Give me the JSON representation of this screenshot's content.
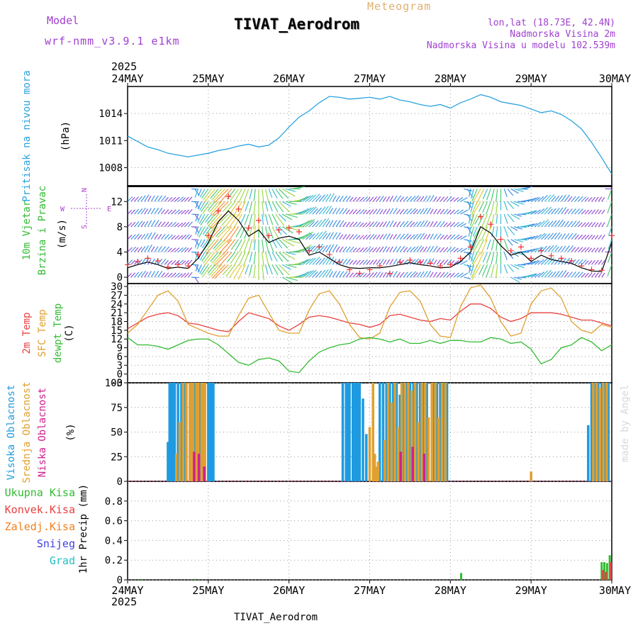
{
  "header": {
    "title": "TIVAT_Aerodrom",
    "subtitle": "Meteogram",
    "model_label": "Model",
    "model_name": "wrf-nmm_v3.9.1 e1km",
    "location": "lon,lat (18.73E, 42.4N)",
    "elevation": "Nadmorska Visina 2m",
    "model_elevation": "Nadmorska Visina u modelu 102.539m",
    "footer_title": "TIVAT_Aerodrom",
    "credit": "made by Angel"
  },
  "time_axis": {
    "top_year": "2025",
    "bottom_year": "2025",
    "days": [
      "24MAY",
      "25MAY",
      "26MAY",
      "27MAY",
      "28MAY",
      "29MAY",
      "30MAY"
    ]
  },
  "panel_labels": {
    "pressure": [
      "Pritisak na nivou mora",
      "(hPa)"
    ],
    "wind": [
      "10m Vjetar",
      "Brzina i Pravac",
      "(m/s)"
    ],
    "compass": {
      "n": "N",
      "s": "S",
      "w": "W",
      "e": "E"
    },
    "temp": [
      "2m Temp",
      "SFC Temp",
      "dewpt Temp",
      "(C)"
    ],
    "cloud": [
      "Visoka Oblacnost",
      "Srednja Oblacnost",
      "Niska Oblacnost",
      "(%)"
    ],
    "precip_legend": [
      "Ukupna Kisa",
      "Konvek.Kisa",
      "Zaledj.Kisa",
      "Snijeg",
      "Grad"
    ],
    "precip_unit": "1hr Precip (mm)"
  },
  "colors": {
    "pressure": "#2aa3e0",
    "wind_speed": "#000000",
    "wind_gust": "#f03030",
    "t2m": "#e84040",
    "sfc": "#e0a030",
    "dewpt": "#33bb33",
    "cloud_high": "#1e9be0",
    "cloud_mid": "#e0a030",
    "cloud_low": "#d02090",
    "precip_total": "#33bb33",
    "precip_conv": "#e84040",
    "precip_frz": "#f08020",
    "precip_snow": "#4040e0",
    "precip_hail": "#20c0c0",
    "title": "#000000",
    "meta_text": "#a040d0"
  },
  "chart_data": [
    {
      "type": "line",
      "name": "pressure",
      "x_unit": "hours from 24MAY 00",
      "ylim": [
        1006,
        1017
      ],
      "yticks": [
        1008,
        1011,
        1014
      ],
      "x": [
        0,
        3,
        6,
        9,
        12,
        15,
        18,
        21,
        24,
        27,
        30,
        33,
        36,
        39,
        42,
        45,
        48,
        51,
        54,
        57,
        60,
        63,
        66,
        69,
        72,
        75,
        78,
        81,
        84,
        87,
        90,
        93,
        96,
        99,
        102,
        105,
        108,
        111,
        114,
        117,
        120,
        123,
        126,
        129,
        132,
        135,
        138,
        141,
        144
      ],
      "y": [
        1011.5,
        1010.9,
        1010.3,
        1010.0,
        1009.6,
        1009.4,
        1009.2,
        1009.4,
        1009.6,
        1009.9,
        1010.1,
        1010.4,
        1010.6,
        1010.3,
        1010.5,
        1011.3,
        1012.5,
        1013.6,
        1014.3,
        1015.2,
        1015.9,
        1015.8,
        1015.6,
        1015.7,
        1015.8,
        1015.6,
        1015.9,
        1015.5,
        1015.3,
        1015.0,
        1014.8,
        1015.0,
        1014.6,
        1015.2,
        1015.6,
        1016.1,
        1015.8,
        1015.3,
        1015.1,
        1014.9,
        1014.5,
        1014.1,
        1014.3,
        1013.9,
        1013.2,
        1012.3,
        1010.8,
        1009.1,
        1007.3
      ]
    },
    {
      "type": "line",
      "name": "wind_speed",
      "x_unit": "hours from 24MAY 00",
      "ylim": [
        -1,
        14.5
      ],
      "yticks": [
        0,
        4,
        8,
        12
      ],
      "x": [
        0,
        3,
        6,
        9,
        12,
        15,
        18,
        21,
        24,
        27,
        30,
        33,
        36,
        39,
        42,
        45,
        48,
        51,
        54,
        57,
        60,
        63,
        66,
        69,
        72,
        75,
        78,
        81,
        84,
        87,
        90,
        93,
        96,
        99,
        102,
        105,
        108,
        111,
        114,
        117,
        120,
        123,
        126,
        129,
        132,
        135,
        138,
        141,
        144
      ],
      "y": [
        1.5,
        2.0,
        2.4,
        2.0,
        1.4,
        1.6,
        1.4,
        3.0,
        5.5,
        8.8,
        10.5,
        9.0,
        6.5,
        7.5,
        5.5,
        6.2,
        6.5,
        6.0,
        3.5,
        4.0,
        3.0,
        2.0,
        1.5,
        1.4,
        1.5,
        1.5,
        1.7,
        2.0,
        2.3,
        2.0,
        1.8,
        1.5,
        1.6,
        2.5,
        4.0,
        8.0,
        7.0,
        5.0,
        3.5,
        4.0,
        2.5,
        3.5,
        2.8,
        2.5,
        2.2,
        1.5,
        1.0,
        0.9,
        5.5
      ],
      "gust_y": [
        2.0,
        2.5,
        3.0,
        2.6,
        1.6,
        2.0,
        1.8,
        3.6,
        6.6,
        10.5,
        12.8,
        10.8,
        7.8,
        9.0,
        6.6,
        7.5,
        7.8,
        7.2,
        4.2,
        4.8,
        3.6,
        2.4,
        1.2,
        0.6,
        1.2,
        1.8,
        0.6,
        2.4,
        2.7,
        2.4,
        2.2,
        1.8,
        2.0,
        3.0,
        4.8,
        9.6,
        8.4,
        6.0,
        4.2,
        4.8,
        3.0,
        4.2,
        3.4,
        3.0,
        2.6,
        1.8,
        1.2,
        1.1,
        6.6
      ],
      "wind_dir_deg": [
        45,
        40,
        30,
        35,
        45,
        50,
        40,
        200,
        215,
        220,
        225,
        215,
        200,
        180,
        160,
        135,
        90,
        60,
        45,
        40,
        30,
        35,
        40,
        45,
        40,
        35,
        30,
        40,
        45,
        35,
        30,
        40,
        45,
        60,
        190,
        210,
        200,
        180,
        120,
        80,
        60,
        45,
        40,
        35,
        40,
        45,
        40,
        35,
        200
      ]
    },
    {
      "type": "line",
      "name": "temperature",
      "x_unit": "hours from 24MAY 00",
      "ylim": [
        -3,
        31
      ],
      "yticks": [
        -3,
        0,
        3,
        6,
        9,
        12,
        15,
        18,
        21,
        24,
        27,
        30
      ],
      "x": [
        0,
        3,
        6,
        9,
        12,
        15,
        18,
        21,
        24,
        27,
        30,
        33,
        36,
        39,
        42,
        45,
        48,
        51,
        54,
        57,
        60,
        63,
        66,
        69,
        72,
        75,
        78,
        81,
        84,
        87,
        90,
        93,
        96,
        99,
        102,
        105,
        108,
        111,
        114,
        117,
        120,
        123,
        126,
        129,
        132,
        135,
        138,
        141,
        144
      ],
      "series": [
        {
          "name": "2m Temp",
          "color_key": "t2m",
          "values": [
            15.5,
            17.5,
            19.5,
            20.5,
            21,
            20,
            17.5,
            17,
            16,
            15,
            14.5,
            18,
            21,
            20,
            19,
            16.5,
            15,
            17,
            19.5,
            20,
            19.5,
            18.5,
            17.5,
            17,
            16,
            17,
            20,
            20.5,
            19.5,
            18.5,
            18,
            19,
            18.5,
            21.5,
            24,
            24,
            22.5,
            19.5,
            18,
            19,
            21,
            21,
            21,
            20.5,
            19.5,
            18.5,
            18.5,
            17.5,
            16.5
          ]
        },
        {
          "name": "SFC Temp",
          "color_key": "sfc",
          "values": [
            14,
            17,
            22,
            27,
            28.5,
            25,
            17,
            15.5,
            14,
            13,
            13,
            20,
            26,
            27,
            21,
            15,
            14,
            14,
            22,
            27.5,
            28.5,
            24,
            17,
            12.5,
            12,
            14,
            23,
            28,
            28.5,
            25,
            17,
            13,
            12.5,
            23,
            29.5,
            30.5,
            26,
            18,
            13,
            14,
            24,
            28.5,
            29.5,
            26,
            18,
            15,
            14,
            17,
            16
          ]
        },
        {
          "name": "dewpt Temp",
          "color_key": "dewpt",
          "values": [
            12.5,
            10,
            10,
            9.5,
            8.5,
            10,
            11.5,
            12,
            12,
            10,
            7,
            4,
            3,
            5,
            5.5,
            4.5,
            1,
            0.5,
            4.5,
            7.5,
            9,
            10,
            10.5,
            12,
            12.5,
            12,
            11,
            12,
            10.5,
            10.5,
            11.5,
            10.5,
            11.5,
            11.5,
            11,
            11,
            12.5,
            12,
            10.5,
            11,
            8.5,
            3.5,
            5,
            9,
            10,
            12.5,
            11,
            8,
            10
          ]
        }
      ]
    },
    {
      "type": "bar",
      "name": "cloud_cover",
      "unit": "%",
      "ylim": [
        0,
        100
      ],
      "yticks": [
        0,
        25,
        50,
        75,
        100
      ],
      "bar_width_hours": 0.35,
      "series": [
        {
          "name": "Visoka Oblacnost",
          "color_key": "cloud_high",
          "x": [
            12,
            12.5,
            13,
            13.5,
            14,
            15,
            16,
            17,
            20,
            21.5,
            24,
            24.5,
            25,
            25.5,
            64,
            65,
            65.5,
            66,
            67,
            67.5,
            68,
            68.5,
            69,
            70,
            71,
            75,
            76,
            77,
            78,
            79,
            80,
            81,
            82,
            83,
            84,
            85,
            86,
            87,
            88,
            89,
            91,
            92,
            93,
            94,
            95,
            137,
            138,
            139,
            140,
            141,
            142,
            143
          ],
          "values": [
            40,
            100,
            100,
            100,
            100,
            100,
            100,
            100,
            100,
            100,
            100,
            100,
            100,
            100,
            100,
            100,
            100,
            100,
            100,
            100,
            100,
            100,
            100,
            84,
            48,
            100,
            100,
            100,
            100,
            100,
            100,
            88,
            100,
            100,
            100,
            100,
            100,
            100,
            100,
            100,
            100,
            100,
            100,
            100,
            100,
            57,
            100,
            100,
            100,
            100,
            100,
            100
          ]
        },
        {
          "name": "Srednja Oblacnost",
          "color_key": "cloud_mid",
          "x": [
            14.5,
            15.5,
            16.5,
            17.5,
            18.5,
            19,
            19.5,
            20.5,
            21,
            22,
            22.5,
            23,
            72,
            73,
            73.5,
            74,
            74.5,
            76.5,
            77.5,
            78.5,
            79.5,
            80.5,
            81.5,
            82.5,
            83.5,
            84.5,
            85.5,
            86.5,
            87.5,
            88.5,
            89.5,
            90.5,
            91.5,
            92.5,
            93.5,
            94.5,
            120,
            138.5,
            139.5,
            140.5,
            141.5,
            142.5
          ],
          "values": [
            28,
            60,
            100,
            100,
            100,
            100,
            100,
            100,
            100,
            100,
            100,
            100,
            55,
            100,
            28,
            15,
            20,
            42,
            100,
            80,
            100,
            55,
            100,
            100,
            100,
            92,
            100,
            60,
            100,
            100,
            65,
            100,
            100,
            65,
            100,
            100,
            10,
            100,
            100,
            95,
            100,
            100
          ]
        },
        {
          "name": "Niska Oblacnost",
          "color_key": "cloud_low",
          "x": [
            19.8,
            21.2,
            22.8,
            81.2,
            84.8,
            88.2
          ],
          "values": [
            30,
            28,
            15,
            30,
            35,
            28
          ]
        }
      ]
    },
    {
      "type": "bar",
      "name": "precip_1hr",
      "unit": "mm",
      "ylim": [
        0,
        1.0
      ],
      "yticks": [
        0,
        0.2,
        0.4,
        0.6,
        0.8
      ],
      "bar_width_hours": 0.4,
      "series": [
        {
          "name": "Ukupna Kisa",
          "color_key": "precip_total",
          "x": [
            4,
            20,
            99.2,
            141,
            141.8,
            142.6,
            143.4
          ],
          "values": [
            0.01,
            0.01,
            0.07,
            0.18,
            0.18,
            0.17,
            0.25
          ]
        },
        {
          "name": "Konvek.Kisa",
          "color_key": "precip_conv",
          "x": [
            141.4,
            142.2,
            143.7
          ],
          "values": [
            0.1,
            0.08,
            0.18
          ]
        }
      ]
    }
  ]
}
